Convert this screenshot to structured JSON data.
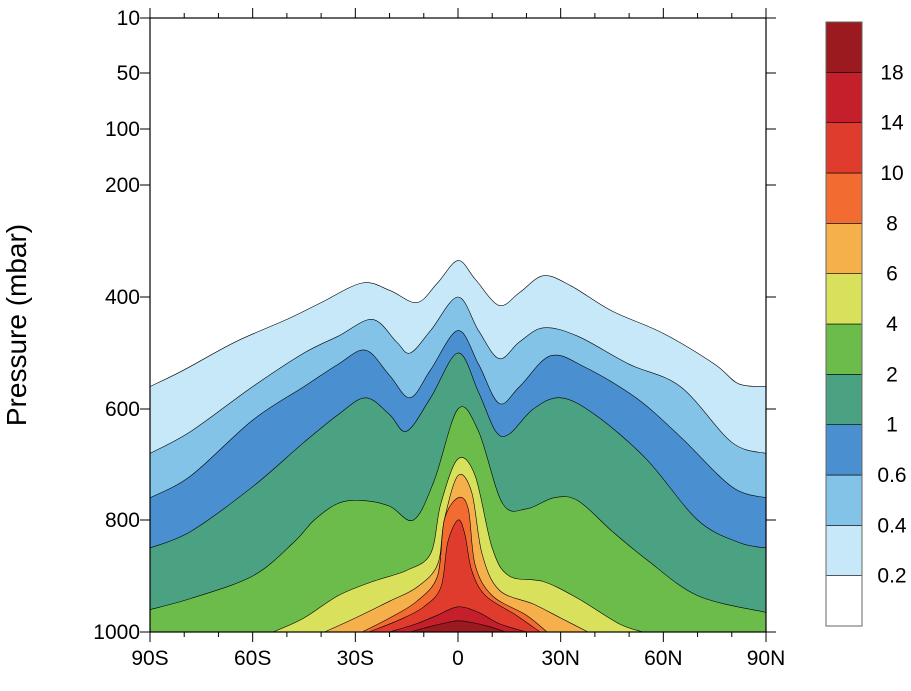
{
  "chart_data": {
    "type": "contour",
    "xlabel": "",
    "ylabel": "Pressure (mbar)",
    "x_ticks": [
      "90S",
      "60S",
      "30S",
      "0",
      "30N",
      "60N",
      "90N"
    ],
    "x_tick_values": [
      -90,
      -60,
      -30,
      0,
      30,
      60,
      90
    ],
    "y_ticks": [
      "10",
      "50",
      "100",
      "200",
      "400",
      "600",
      "800",
      "1000"
    ],
    "y_tick_values": [
      10,
      50,
      100,
      200,
      400,
      600,
      800,
      1000
    ],
    "x_range": [
      -90,
      90
    ],
    "y_range": [
      1000,
      10
    ],
    "y_scale": "custom pressure",
    "colorbar": {
      "labels": [
        "0.2",
        "0.4",
        "0.6",
        "1",
        "2",
        "4",
        "6",
        "8",
        "10",
        "14",
        "18"
      ],
      "levels": [
        0.2,
        0.4,
        0.6,
        1,
        2,
        4,
        6,
        8,
        10,
        14,
        18
      ],
      "colors": [
        "#ffffff",
        "#c6e8f8",
        "#84c3e8",
        "#4a8fd0",
        "#4aa283",
        "#6cbc4b",
        "#d8e05c",
        "#f6b04b",
        "#f26c32",
        "#e03c2e",
        "#c41f2a",
        "#9b1a1f"
      ]
    },
    "contour_levels": [
      {
        "level": 0.2,
        "color": "#c6e8f8",
        "boundary": [
          [
            -90,
            560
          ],
          [
            -80,
            530
          ],
          [
            -65,
            480
          ],
          [
            -50,
            440
          ],
          [
            -40,
            410
          ],
          [
            -28,
            375
          ],
          [
            -20,
            388
          ],
          [
            -12,
            410
          ],
          [
            -6,
            375
          ],
          [
            0,
            335
          ],
          [
            5,
            368
          ],
          [
            12,
            415
          ],
          [
            18,
            392
          ],
          [
            25,
            362
          ],
          [
            33,
            380
          ],
          [
            45,
            425
          ],
          [
            60,
            465
          ],
          [
            75,
            520
          ],
          [
            82,
            555
          ],
          [
            90,
            560
          ]
        ]
      },
      {
        "level": 0.4,
        "color": "#84c3e8",
        "boundary": [
          [
            -90,
            680
          ],
          [
            -78,
            640
          ],
          [
            -60,
            560
          ],
          [
            -45,
            500
          ],
          [
            -35,
            470
          ],
          [
            -25,
            440
          ],
          [
            -18,
            480
          ],
          [
            -14,
            500
          ],
          [
            -8,
            460
          ],
          [
            0,
            400
          ],
          [
            6,
            460
          ],
          [
            12,
            510
          ],
          [
            18,
            480
          ],
          [
            25,
            455
          ],
          [
            35,
            470
          ],
          [
            50,
            520
          ],
          [
            65,
            560
          ],
          [
            80,
            660
          ],
          [
            90,
            680
          ]
        ]
      },
      {
        "level": 0.6,
        "color": "#4a8fd0",
        "boundary": [
          [
            -90,
            760
          ],
          [
            -78,
            720
          ],
          [
            -60,
            620
          ],
          [
            -45,
            560
          ],
          [
            -35,
            520
          ],
          [
            -27,
            495
          ],
          [
            -20,
            540
          ],
          [
            -14,
            580
          ],
          [
            -8,
            530
          ],
          [
            0,
            460
          ],
          [
            6,
            520
          ],
          [
            12,
            590
          ],
          [
            18,
            560
          ],
          [
            27,
            505
          ],
          [
            37,
            525
          ],
          [
            52,
            580
          ],
          [
            65,
            650
          ],
          [
            80,
            740
          ],
          [
            90,
            760
          ]
        ]
      },
      {
        "level": 1,
        "color": "#4aa283",
        "boundary": [
          [
            -90,
            850
          ],
          [
            -78,
            820
          ],
          [
            -60,
            740
          ],
          [
            -45,
            660
          ],
          [
            -35,
            610
          ],
          [
            -27,
            580
          ],
          [
            -20,
            610
          ],
          [
            -15,
            640
          ],
          [
            -8,
            580
          ],
          [
            0,
            500
          ],
          [
            6,
            570
          ],
          [
            11,
            640
          ],
          [
            15,
            645
          ],
          [
            22,
            600
          ],
          [
            30,
            580
          ],
          [
            40,
            610
          ],
          [
            55,
            690
          ],
          [
            70,
            800
          ],
          [
            82,
            840
          ],
          [
            90,
            850
          ]
        ]
      },
      {
        "level": 2,
        "color": "#6cbc4b",
        "boundary": [
          [
            -90,
            960
          ],
          [
            -78,
            940
          ],
          [
            -60,
            900
          ],
          [
            -48,
            840
          ],
          [
            -42,
            800
          ],
          [
            -35,
            770
          ],
          [
            -28,
            765
          ],
          [
            -20,
            775
          ],
          [
            -13,
            800
          ],
          [
            -7,
            730
          ],
          [
            0,
            600
          ],
          [
            6,
            640
          ],
          [
            13,
            770
          ],
          [
            20,
            780
          ],
          [
            28,
            760
          ],
          [
            35,
            765
          ],
          [
            45,
            820
          ],
          [
            55,
            870
          ],
          [
            70,
            935
          ],
          [
            90,
            965
          ]
        ]
      },
      {
        "level": 4,
        "color": "#d8e05c",
        "boundary": [
          [
            -54,
            1000
          ],
          [
            -45,
            975
          ],
          [
            -35,
            935
          ],
          [
            -25,
            910
          ],
          [
            -15,
            890
          ],
          [
            -8,
            860
          ],
          [
            -5,
            770
          ],
          [
            0,
            690
          ],
          [
            5,
            720
          ],
          [
            10,
            850
          ],
          [
            15,
            900
          ],
          [
            25,
            910
          ],
          [
            35,
            940
          ],
          [
            47,
            985
          ],
          [
            54,
            1000
          ]
        ]
      },
      {
        "level": 6,
        "color": "#f6b04b",
        "boundary": [
          [
            -39,
            1000
          ],
          [
            -30,
            975
          ],
          [
            -20,
            945
          ],
          [
            -12,
            920
          ],
          [
            -6,
            880
          ],
          [
            -4,
            800
          ],
          [
            0,
            720
          ],
          [
            4,
            750
          ],
          [
            7,
            860
          ],
          [
            12,
            925
          ],
          [
            22,
            950
          ],
          [
            30,
            975
          ],
          [
            38,
            1000
          ]
        ]
      },
      {
        "level": 8,
        "color": "#f26c32",
        "boundary": [
          [
            -28,
            1000
          ],
          [
            -20,
            975
          ],
          [
            -12,
            945
          ],
          [
            -6,
            900
          ],
          [
            -4,
            800
          ],
          [
            0,
            760
          ],
          [
            3,
            780
          ],
          [
            5,
            880
          ],
          [
            10,
            935
          ],
          [
            20,
            970
          ],
          [
            26,
            1000
          ]
        ]
      },
      {
        "level": 10,
        "color": "#e03c2e",
        "boundary": [
          [
            -26,
            1000
          ],
          [
            -17,
            978
          ],
          [
            -10,
            955
          ],
          [
            -5,
            920
          ],
          [
            -3,
            840
          ],
          [
            0,
            800
          ],
          [
            2,
            825
          ],
          [
            4,
            890
          ],
          [
            8,
            935
          ],
          [
            17,
            970
          ],
          [
            24,
            1000
          ]
        ]
      },
      {
        "level": 14,
        "color": "#c41f2a",
        "boundary": [
          [
            -20,
            1000
          ],
          [
            -12,
            985
          ],
          [
            -6,
            970
          ],
          [
            0,
            955
          ],
          [
            6,
            965
          ],
          [
            12,
            985
          ],
          [
            20,
            1000
          ]
        ]
      },
      {
        "level": 18,
        "color": "#9b1a1f",
        "boundary": [
          [
            -14,
            1000
          ],
          [
            -8,
            990
          ],
          [
            -3,
            983
          ],
          [
            0,
            980
          ],
          [
            4,
            983
          ],
          [
            9,
            990
          ],
          [
            14,
            1000
          ]
        ]
      }
    ]
  }
}
